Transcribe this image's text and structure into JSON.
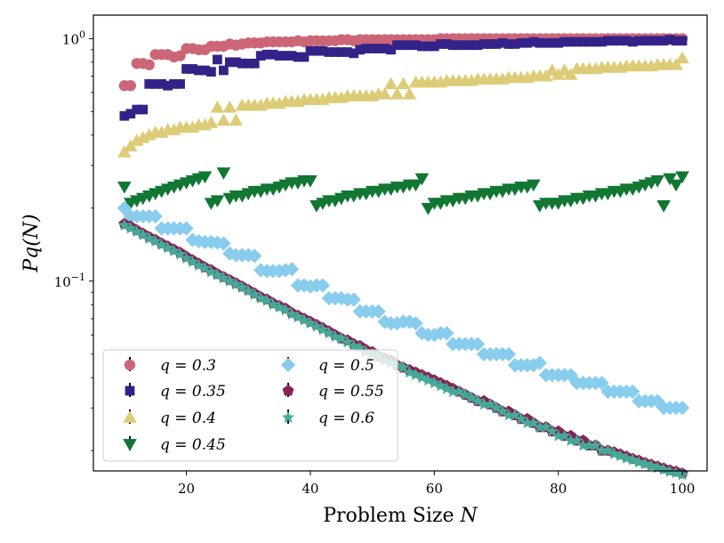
{
  "chart_data": {
    "type": "scatter",
    "xlabel": "Problem Size N",
    "ylabel": "Pq(N)",
    "yscale": "log",
    "xlim": [
      5,
      104
    ],
    "ylim": [
      0.0165,
      1.25
    ],
    "xticks": [
      20,
      40,
      60,
      80,
      100
    ],
    "yticks": [
      {
        "value": 1.0,
        "base": "10",
        "exp": "0"
      },
      {
        "value": 0.1,
        "base": "10",
        "exp": "−1"
      }
    ],
    "legend_position": "lower-left",
    "x": [
      10,
      11,
      12,
      13,
      14,
      15,
      16,
      17,
      18,
      19,
      20,
      21,
      22,
      23,
      24,
      25,
      26,
      27,
      28,
      29,
      30,
      31,
      32,
      33,
      34,
      35,
      36,
      37,
      38,
      39,
      40,
      41,
      42,
      43,
      44,
      45,
      46,
      47,
      48,
      49,
      50,
      51,
      52,
      53,
      54,
      55,
      56,
      57,
      58,
      59,
      60,
      61,
      62,
      63,
      64,
      65,
      66,
      67,
      68,
      69,
      70,
      71,
      72,
      73,
      74,
      75,
      76,
      77,
      78,
      79,
      80,
      81,
      82,
      83,
      84,
      85,
      86,
      87,
      88,
      89,
      90,
      91,
      92,
      93,
      94,
      95,
      96,
      97,
      98,
      99,
      100
    ],
    "series": [
      {
        "name": "q = 0.3",
        "color": "#cc6677",
        "marker": "circle",
        "values": [
          0.64,
          0.64,
          0.79,
          0.79,
          0.78,
          0.86,
          0.86,
          0.86,
          0.84,
          0.85,
          0.91,
          0.91,
          0.9,
          0.9,
          0.93,
          0.93,
          0.93,
          0.95,
          0.94,
          0.95,
          0.96,
          0.96,
          0.96,
          0.97,
          0.97,
          0.97,
          0.97,
          0.97,
          0.98,
          0.97,
          0.98,
          0.98,
          0.98,
          0.98,
          0.98,
          0.99,
          0.99,
          0.98,
          0.99,
          0.99,
          0.99,
          0.99,
          0.99,
          0.99,
          0.99,
          0.99,
          0.99,
          0.99,
          0.99,
          0.99,
          0.99,
          1.0,
          1.0,
          1.0,
          1.0,
          1.0,
          1.0,
          1.0,
          1.0,
          1.0,
          1.0,
          1.0,
          1.0,
          1.0,
          1.0,
          1.0,
          1.0,
          1.0,
          1.0,
          1.0,
          1.0,
          1.0,
          1.0,
          1.0,
          1.0,
          1.0,
          1.0,
          1.0,
          1.0,
          1.0,
          1.0,
          1.0,
          1.0,
          1.0,
          1.0,
          1.0,
          1.0,
          1.0,
          1.0,
          1.0,
          1.0
        ]
      },
      {
        "name": "q = 0.35",
        "color": "#332288",
        "marker": "square",
        "values": [
          0.48,
          0.49,
          0.51,
          0.51,
          0.65,
          0.65,
          0.65,
          0.64,
          0.65,
          0.65,
          0.75,
          0.75,
          0.74,
          0.74,
          0.73,
          0.82,
          0.74,
          0.8,
          0.8,
          0.79,
          0.79,
          0.79,
          0.85,
          0.86,
          0.86,
          0.85,
          0.85,
          0.85,
          0.84,
          0.84,
          0.89,
          0.89,
          0.89,
          0.88,
          0.88,
          0.88,
          0.88,
          0.87,
          0.9,
          0.91,
          0.91,
          0.91,
          0.91,
          0.9,
          0.94,
          0.94,
          0.94,
          0.94,
          0.93,
          0.93,
          0.93,
          0.95,
          0.95,
          0.94,
          0.94,
          0.94,
          0.94,
          0.94,
          0.95,
          0.95,
          0.95,
          0.96,
          0.95,
          0.95,
          0.96,
          0.96,
          0.97,
          0.96,
          0.96,
          0.96,
          0.96,
          0.97,
          0.97,
          0.97,
          0.97,
          0.97,
          0.97,
          0.97,
          0.98,
          0.98,
          0.98,
          0.98,
          0.97,
          0.98,
          0.98,
          0.98,
          0.98,
          0.98,
          0.99,
          0.98,
          0.98
        ]
      },
      {
        "name": "q = 0.4",
        "color": "#ddcc77",
        "marker": "triangle-up",
        "values": [
          0.34,
          0.36,
          0.38,
          0.39,
          0.4,
          0.41,
          0.41,
          0.42,
          0.42,
          0.43,
          0.43,
          0.43,
          0.44,
          0.44,
          0.45,
          0.52,
          0.46,
          0.52,
          0.46,
          0.53,
          0.53,
          0.53,
          0.53,
          0.54,
          0.54,
          0.54,
          0.55,
          0.55,
          0.55,
          0.56,
          0.56,
          0.56,
          0.56,
          0.57,
          0.57,
          0.57,
          0.58,
          0.58,
          0.58,
          0.58,
          0.58,
          0.59,
          0.59,
          0.65,
          0.59,
          0.65,
          0.59,
          0.66,
          0.66,
          0.66,
          0.66,
          0.66,
          0.67,
          0.67,
          0.67,
          0.67,
          0.67,
          0.68,
          0.68,
          0.68,
          0.68,
          0.68,
          0.69,
          0.69,
          0.69,
          0.69,
          0.7,
          0.7,
          0.7,
          0.74,
          0.71,
          0.74,
          0.71,
          0.75,
          0.75,
          0.75,
          0.75,
          0.76,
          0.76,
          0.76,
          0.76,
          0.77,
          0.77,
          0.77,
          0.77,
          0.77,
          0.78,
          0.78,
          0.78,
          0.78,
          0.83
        ]
      },
      {
        "name": "q = 0.45",
        "color": "#117733",
        "marker": "triangle-down",
        "values": [
          0.245,
          0.21,
          0.215,
          0.22,
          0.225,
          0.23,
          0.235,
          0.24,
          0.245,
          0.25,
          0.255,
          0.26,
          0.265,
          0.27,
          0.21,
          0.215,
          0.28,
          0.22,
          0.225,
          0.225,
          0.23,
          0.235,
          0.235,
          0.24,
          0.24,
          0.245,
          0.25,
          0.255,
          0.255,
          0.26,
          0.26,
          0.205,
          0.21,
          0.215,
          0.215,
          0.22,
          0.225,
          0.225,
          0.23,
          0.23,
          0.235,
          0.235,
          0.24,
          0.24,
          0.245,
          0.245,
          0.25,
          0.25,
          0.265,
          0.2,
          0.21,
          0.21,
          0.215,
          0.215,
          0.22,
          0.22,
          0.225,
          0.225,
          0.23,
          0.23,
          0.235,
          0.235,
          0.24,
          0.24,
          0.245,
          0.245,
          0.25,
          0.205,
          0.21,
          0.21,
          0.21,
          0.215,
          0.215,
          0.22,
          0.22,
          0.225,
          0.225,
          0.23,
          0.23,
          0.235,
          0.235,
          0.24,
          0.24,
          0.245,
          0.25,
          0.255,
          0.26,
          0.205,
          0.265,
          0.25,
          0.27
        ]
      },
      {
        "name": "q = 0.5",
        "color": "#88ccee",
        "marker": "diamond",
        "values": [
          0.2,
          0.185,
          0.185,
          0.185,
          0.185,
          0.185,
          0.165,
          0.165,
          0.165,
          0.165,
          0.165,
          0.148,
          0.146,
          0.145,
          0.145,
          0.144,
          0.143,
          0.13,
          0.128,
          0.128,
          0.128,
          0.127,
          0.111,
          0.11,
          0.11,
          0.11,
          0.111,
          0.112,
          0.096,
          0.096,
          0.095,
          0.096,
          0.096,
          0.085,
          0.085,
          0.085,
          0.084,
          0.084,
          0.075,
          0.075,
          0.075,
          0.075,
          0.068,
          0.067,
          0.067,
          0.068,
          0.068,
          0.067,
          0.061,
          0.06,
          0.06,
          0.061,
          0.061,
          0.055,
          0.055,
          0.055,
          0.055,
          0.055,
          0.05,
          0.05,
          0.05,
          0.05,
          0.05,
          0.045,
          0.045,
          0.045,
          0.045,
          0.046,
          0.041,
          0.041,
          0.041,
          0.041,
          0.041,
          0.038,
          0.038,
          0.038,
          0.038,
          0.038,
          0.035,
          0.035,
          0.035,
          0.035,
          0.035,
          0.032,
          0.032,
          0.032,
          0.032,
          0.03,
          0.03,
          0.03,
          0.03
        ]
      },
      {
        "name": "q = 0.55",
        "color": "#882255",
        "marker": "pentagon",
        "values": [
          0.172,
          0.168,
          0.162,
          0.157,
          0.152,
          0.148,
          0.143,
          0.139,
          0.135,
          0.131,
          0.126,
          0.122,
          0.118,
          0.114,
          0.111,
          0.107,
          0.104,
          0.101,
          0.098,
          0.095,
          0.092,
          0.089,
          0.086,
          0.084,
          0.081,
          0.079,
          0.077,
          0.074,
          0.072,
          0.07,
          0.068,
          0.066,
          0.064,
          0.062,
          0.06,
          0.058,
          0.057,
          0.055,
          0.054,
          0.052,
          0.051,
          0.049,
          0.048,
          0.047,
          0.045,
          0.044,
          0.043,
          0.042,
          0.041,
          0.04,
          0.039,
          0.038,
          0.037,
          0.036,
          0.035,
          0.034,
          0.033,
          0.032,
          0.032,
          0.031,
          0.03,
          0.029,
          0.029,
          0.028,
          0.027,
          0.027,
          0.026,
          0.025,
          0.025,
          0.024,
          0.024,
          0.023,
          0.023,
          0.022,
          0.022,
          0.021,
          0.021,
          0.02,
          0.02,
          0.0197,
          0.0193,
          0.0189,
          0.0185,
          0.0182,
          0.0178,
          0.0175,
          0.0172,
          0.0169,
          0.0166,
          0.0164,
          0.0161
        ]
      },
      {
        "name": "q = 0.6",
        "color": "#44aa99",
        "marker": "star",
        "values": [
          0.17,
          0.165,
          0.16,
          0.155,
          0.15,
          0.146,
          0.141,
          0.137,
          0.133,
          0.129,
          0.124,
          0.12,
          0.116,
          0.113,
          0.109,
          0.106,
          0.103,
          0.1,
          0.097,
          0.094,
          0.091,
          0.088,
          0.085,
          0.083,
          0.08,
          0.078,
          0.076,
          0.073,
          0.071,
          0.069,
          0.067,
          0.065,
          0.063,
          0.061,
          0.059,
          0.058,
          0.056,
          0.054,
          0.053,
          0.051,
          0.05,
          0.049,
          0.047,
          0.046,
          0.045,
          0.044,
          0.042,
          0.041,
          0.04,
          0.039,
          0.038,
          0.037,
          0.036,
          0.035,
          0.035,
          0.034,
          0.033,
          0.032,
          0.031,
          0.031,
          0.03,
          0.029,
          0.028,
          0.028,
          0.027,
          0.026,
          0.026,
          0.025,
          0.025,
          0.024,
          0.023,
          0.023,
          0.022,
          0.022,
          0.021,
          0.021,
          0.021,
          0.02,
          0.02,
          0.0194,
          0.019,
          0.0186,
          0.0183,
          0.0179,
          0.0176,
          0.0173,
          0.017,
          0.0167,
          0.0164,
          0.0162,
          0.0159
        ]
      }
    ]
  }
}
